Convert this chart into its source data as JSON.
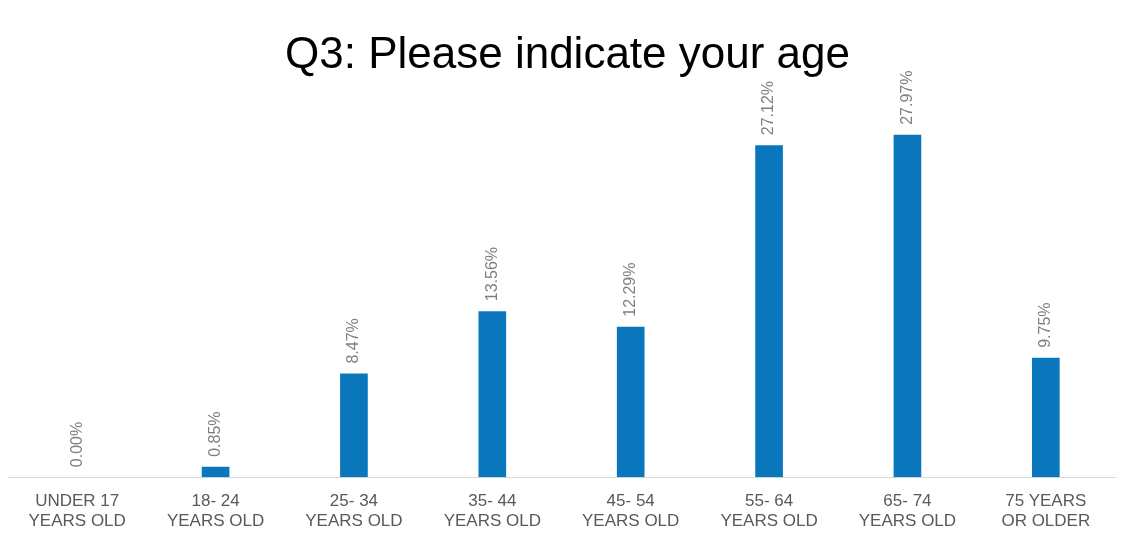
{
  "chart_data": {
    "type": "bar",
    "title": "Q3: Please indicate your age",
    "categories": [
      "UNDER 17 YEARS OLD",
      "18- 24 YEARS OLD",
      "25- 34 YEARS OLD",
      "35- 44 YEARS OLD",
      "45- 54 YEARS OLD",
      "55- 64 YEARS OLD",
      "65- 74 YEARS OLD",
      "75 YEARS OR OLDER"
    ],
    "values": [
      0,
      0.85,
      8.47,
      13.56,
      12.29,
      27.12,
      27.97,
      9.75
    ],
    "value_labels": [
      "0.00%",
      "0.85%",
      "8.47%",
      "13.56%",
      "12.29%",
      "27.12%",
      "27.97%",
      "9.75%"
    ],
    "color": "#0a77bd",
    "grid": false,
    "legend": false
  }
}
